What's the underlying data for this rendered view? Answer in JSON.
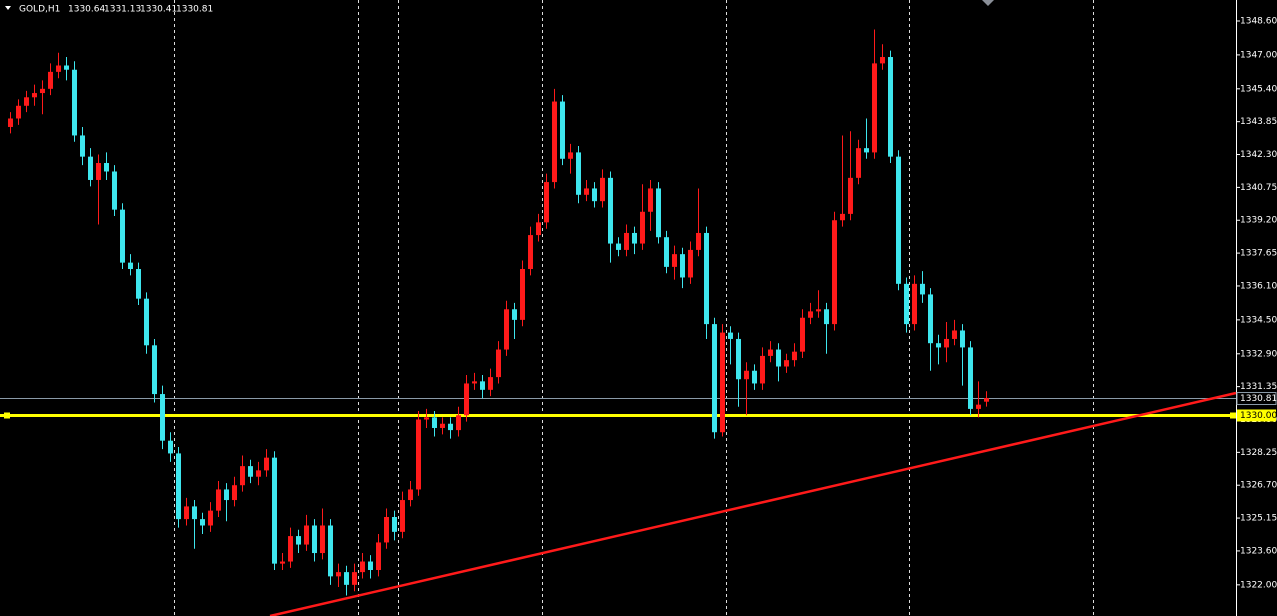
{
  "chart_data": {
    "type": "candlestick",
    "title": "GOLD,H1",
    "bull_color": "#ff1a1a",
    "bear_color": "#3ee6ee",
    "background": "#000000",
    "grid": true,
    "xlim": [
      -1.25,
      153.25
    ],
    "xgrid": [
      20.5,
      43.5,
      48.5,
      66.5,
      89.5,
      112.4,
      135.4
    ],
    "ylim": [
      1320.53,
      1349.59
    ],
    "yticks": [
      {
        "value": 1348.6,
        "label": "1348.60"
      },
      {
        "value": 1347,
        "label": "1347.00"
      },
      {
        "value": 1345.4,
        "label": "1345.40"
      },
      {
        "value": 1343.85,
        "label": "1343.85"
      },
      {
        "value": 1342.3,
        "label": "1342.30"
      },
      {
        "value": 1340.75,
        "label": "1340.75"
      },
      {
        "value": 1339.2,
        "label": "1339.20"
      },
      {
        "value": 1337.65,
        "label": "1337.65"
      },
      {
        "value": 1336.1,
        "label": "1336.10"
      },
      {
        "value": 1334.5,
        "label": "1334.50"
      },
      {
        "value": 1332.9,
        "label": "1332.90"
      },
      {
        "value": 1331.35,
        "label": "1331.35"
      },
      {
        "value": 1329.8,
        "label": "1329.80"
      },
      {
        "value": 1328.25,
        "label": "1328.25"
      },
      {
        "value": 1326.7,
        "label": "1326.70"
      },
      {
        "value": 1325.15,
        "label": "1325.15"
      },
      {
        "value": 1323.6,
        "label": "1323.60"
      },
      {
        "value": 1322,
        "label": "1322.00"
      }
    ],
    "hline": {
      "value": 1330,
      "label": "1330.00",
      "color": "#ffff00"
    },
    "price_line_color": "#8a9aa8",
    "trendline": {
      "x": [
        32.5,
        153.25
      ],
      "y": [
        1320.53,
        1331.05
      ],
      "color": "#ff1a1a"
    },
    "open": [
      1343.6,
      1344.0,
      1344.6,
      1345.0,
      1345.2,
      1345.4,
      1346.2,
      1346.5,
      1346.3,
      1343.2,
      1342.2,
      1341.1,
      1341.9,
      1341.5,
      1339.7,
      1337.2,
      1336.9,
      1335.5,
      1333.3,
      1331.0,
      1328.8,
      1328.2,
      1325.1,
      1325.7,
      1325.1,
      1324.8,
      1325.5,
      1326.5,
      1326.0,
      1326.7,
      1327.6,
      1327.1,
      1327.4,
      1328.0,
      1323.0,
      1323.1,
      1324.3,
      1323.9,
      1324.8,
      1323.5,
      1324.8,
      1322.4,
      1322.6,
      1322.0,
      1322.6,
      1323.1,
      1322.7,
      1324.0,
      1325.2,
      1324.5,
      1326.0,
      1326.5,
      1329.8,
      1329.9,
      1329.4,
      1329.6,
      1329.3,
      1330.0,
      1331.5,
      1331.6,
      1331.2,
      1331.8,
      1333.1,
      1335.0,
      1334.5,
      1336.9,
      1338.5,
      1339.1,
      1341.0,
      1344.8,
      1342.1,
      1342.4,
      1340.4,
      1340.7,
      1340.1,
      1341.2,
      1338.1,
      1337.8,
      1338.6,
      1338.1,
      1339.6,
      1340.7,
      1338.4,
      1337.0,
      1337.6,
      1336.5,
      1337.8,
      1338.6,
      1334.3,
      1329.2,
      1333.9,
      1333.6,
      1331.7,
      1332.1,
      1331.5,
      1332.8,
      1333.1,
      1332.3,
      1332.6,
      1333.0,
      1334.6,
      1334.9,
      1335.0,
      1334.3,
      1339.2,
      1339.5,
      1341.2,
      1342.6,
      1342.4,
      1346.6,
      1346.9,
      1342.2,
      1336.2,
      1334.3,
      1336.2,
      1335.7,
      1333.4,
      1333.2,
      1333.6,
      1334.0,
      1333.2,
      1330.3,
      1330.64
    ],
    "high": [
      1344.3,
      1344.9,
      1345.3,
      1345.6,
      1345.8,
      1346.6,
      1347.1,
      1346.9,
      1346.7,
      1343.6,
      1342.6,
      1342.3,
      1342.4,
      1341.8,
      1340.0,
      1337.6,
      1337.2,
      1335.8,
      1333.6,
      1331.4,
      1329.2,
      1328.5,
      1326.1,
      1326.0,
      1325.4,
      1325.9,
      1326.9,
      1326.8,
      1327.1,
      1328.1,
      1327.9,
      1327.8,
      1328.4,
      1328.3,
      1323.5,
      1324.7,
      1324.6,
      1325.3,
      1325.1,
      1325.6,
      1325.1,
      1323.0,
      1322.9,
      1323.0,
      1323.5,
      1323.4,
      1324.4,
      1325.6,
      1325.5,
      1326.4,
      1326.9,
      1330.2,
      1330.3,
      1330.2,
      1329.9,
      1329.9,
      1330.4,
      1331.9,
      1332.0,
      1331.9,
      1332.2,
      1333.5,
      1335.4,
      1335.3,
      1337.3,
      1338.9,
      1339.5,
      1341.4,
      1345.4,
      1345.1,
      1342.8,
      1342.7,
      1341.1,
      1341.0,
      1341.6,
      1341.5,
      1338.4,
      1339.0,
      1338.9,
      1340.9,
      1341.1,
      1341.0,
      1338.7,
      1338.0,
      1337.9,
      1338.2,
      1340.7,
      1338.9,
      1334.6,
      1334.3,
      1334.2,
      1333.9,
      1332.5,
      1332.4,
      1333.2,
      1333.5,
      1333.4,
      1332.9,
      1333.4,
      1335.0,
      1335.3,
      1335.9,
      1335.3,
      1339.6,
      1343.2,
      1343.4,
      1343.0,
      1344.0,
      1348.2,
      1347.5,
      1347.2,
      1342.5,
      1336.5,
      1336.6,
      1336.8,
      1336.0,
      1333.8,
      1334.4,
      1334.5,
      1334.3,
      1333.5,
      1331.6,
      1331.13
    ],
    "low": [
      1343.3,
      1343.7,
      1344.3,
      1344.6,
      1344.2,
      1345.1,
      1345.9,
      1345.8,
      1342.9,
      1341.8,
      1340.8,
      1339.0,
      1341.1,
      1339.4,
      1336.9,
      1336.6,
      1335.2,
      1332.9,
      1330.6,
      1328.4,
      1327.8,
      1324.7,
      1324.8,
      1323.7,
      1324.4,
      1324.5,
      1325.2,
      1325.0,
      1325.7,
      1326.4,
      1326.8,
      1326.7,
      1327.1,
      1322.7,
      1322.7,
      1322.8,
      1323.5,
      1323.6,
      1323.1,
      1323.2,
      1322.0,
      1321.9,
      1321.5,
      1321.7,
      1322.3,
      1322.3,
      1322.4,
      1323.7,
      1324.1,
      1324.2,
      1325.7,
      1326.2,
      1329.4,
      1329.0,
      1329.1,
      1328.9,
      1329.0,
      1329.7,
      1331.2,
      1330.8,
      1330.9,
      1331.5,
      1332.8,
      1333.6,
      1334.2,
      1336.6,
      1338.2,
      1338.8,
      1340.7,
      1341.8,
      1341.4,
      1340.0,
      1340.1,
      1339.8,
      1339.8,
      1337.2,
      1337.5,
      1337.5,
      1337.6,
      1337.8,
      1338.7,
      1338.1,
      1336.7,
      1336.4,
      1336.0,
      1336.2,
      1337.5,
      1333.6,
      1328.9,
      1329.0,
      1332.4,
      1330.4,
      1330.0,
      1331.2,
      1331.2,
      1332.5,
      1331.6,
      1332.0,
      1332.3,
      1332.7,
      1334.3,
      1334.6,
      1332.9,
      1334.0,
      1338.9,
      1339.2,
      1340.9,
      1342.1,
      1342.1,
      1346.3,
      1341.9,
      1335.9,
      1333.9,
      1334.0,
      1335.3,
      1332.1,
      1332.4,
      1332.5,
      1333.3,
      1331.4,
      1330.0,
      1329.9,
      1330.41
    ],
    "close": [
      1344.0,
      1344.6,
      1345.0,
      1345.2,
      1345.4,
      1346.2,
      1346.5,
      1346.3,
      1343.2,
      1342.2,
      1341.1,
      1341.9,
      1341.5,
      1339.7,
      1337.2,
      1336.9,
      1335.5,
      1333.3,
      1331.0,
      1328.8,
      1328.2,
      1325.1,
      1325.7,
      1325.1,
      1324.8,
      1325.5,
      1326.5,
      1326.0,
      1326.7,
      1327.6,
      1327.1,
      1327.4,
      1328.0,
      1323.0,
      1323.1,
      1324.3,
      1323.9,
      1324.8,
      1323.5,
      1324.8,
      1322.4,
      1322.6,
      1322.0,
      1322.6,
      1323.1,
      1322.7,
      1324.0,
      1325.2,
      1324.5,
      1326.0,
      1326.5,
      1329.8,
      1329.9,
      1329.4,
      1329.6,
      1329.3,
      1330.0,
      1331.5,
      1331.6,
      1331.2,
      1331.8,
      1333.1,
      1335.0,
      1334.5,
      1336.9,
      1338.5,
      1339.1,
      1341.0,
      1344.8,
      1342.1,
      1342.4,
      1340.4,
      1340.7,
      1340.1,
      1341.2,
      1338.1,
      1337.8,
      1338.6,
      1338.1,
      1339.6,
      1340.7,
      1338.4,
      1337.0,
      1337.6,
      1336.5,
      1337.8,
      1338.6,
      1334.3,
      1329.2,
      1333.9,
      1333.6,
      1331.7,
      1332.1,
      1331.5,
      1332.8,
      1333.1,
      1332.3,
      1332.6,
      1333.0,
      1334.6,
      1334.9,
      1335.0,
      1334.3,
      1339.2,
      1339.5,
      1341.2,
      1342.6,
      1342.4,
      1346.6,
      1346.9,
      1342.2,
      1336.2,
      1334.3,
      1336.2,
      1335.7,
      1333.4,
      1333.2,
      1333.6,
      1334.0,
      1333.2,
      1330.3,
      1330.5,
      1330.81
    ]
  }
}
